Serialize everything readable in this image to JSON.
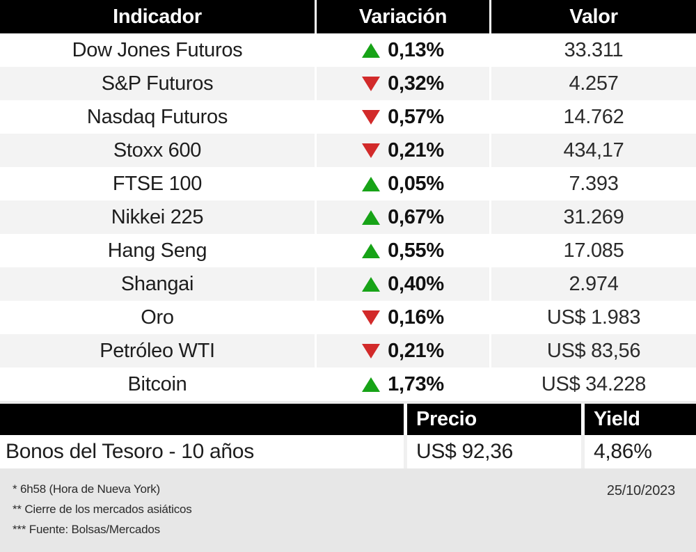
{
  "chart_data": [
    {
      "type": "table",
      "title": "Indicadores de mercado",
      "columns": [
        "Indicador",
        "Variación",
        "Valor"
      ],
      "rows": [
        {
          "indicator": "Dow Jones Futuros",
          "direction": "up",
          "variation": "0,13%",
          "value": "33.311"
        },
        {
          "indicator": "S&P Futuros",
          "direction": "down",
          "variation": "0,32%",
          "value": "4.257"
        },
        {
          "indicator": "Nasdaq Futuros",
          "direction": "down",
          "variation": "0,57%",
          "value": "14.762"
        },
        {
          "indicator": "Stoxx 600",
          "direction": "down",
          "variation": "0,21%",
          "value": "434,17"
        },
        {
          "indicator": "FTSE 100",
          "direction": "up",
          "variation": "0,05%",
          "value": "7.393"
        },
        {
          "indicator": "Nikkei 225",
          "direction": "up",
          "variation": "0,67%",
          "value": "31.269"
        },
        {
          "indicator": "Hang Seng",
          "direction": "up",
          "variation": "0,55%",
          "value": "17.085"
        },
        {
          "indicator": "Shangai",
          "direction": "up",
          "variation": "0,40%",
          "value": "2.974"
        },
        {
          "indicator": "Oro",
          "direction": "down",
          "variation": "0,16%",
          "value": "US$ 1.983"
        },
        {
          "indicator": "Petróleo WTI",
          "direction": "down",
          "variation": "0,21%",
          "value": "US$ 83,56"
        },
        {
          "indicator": "Bitcoin",
          "direction": "up",
          "variation": "1,73%",
          "value": "US$ 34.228"
        }
      ]
    },
    {
      "type": "table",
      "title": "Bonos",
      "columns": [
        "",
        "Precio",
        "Yield"
      ],
      "rows": [
        {
          "indicator": "Bonos del Tesoro - 10 años",
          "price": "US$ 92,36",
          "yield": "4,86%"
        }
      ]
    }
  ],
  "footer": {
    "notes": [
      "* 6h58 (Hora de Nueva York)",
      "** Cierre de los mercados asiáticos",
      "*** Fuente: Bolsas/Mercados"
    ],
    "date": "25/10/2023"
  },
  "colors": {
    "up_green": "#17a317",
    "down_red": "#d22a2a",
    "header_bg": "#000000",
    "row_alt_bg": "#f3f3f3",
    "footer_bg": "#e7e7e7"
  }
}
